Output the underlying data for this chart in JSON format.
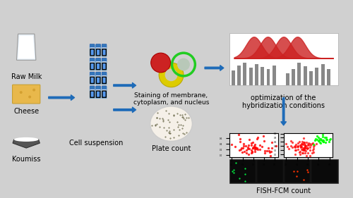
{
  "background_color": "#d8d8d8",
  "title": "",
  "labels": {
    "raw_milk": "Raw Milk",
    "cheese": "Cheese",
    "koumiss": "Koumiss",
    "cell_suspension": "Cell suspension",
    "staining": "Staining of membrane,\ncytoplasm, and nucleus",
    "optimization": "optimization of the\nhybridization conditions",
    "plate_count": "Plate count",
    "fish_fcm": "FISH-FCM count"
  },
  "arrow_color": "#1e6bb8",
  "arrow_down_color": "#1e6bb8",
  "font_size": 7,
  "fig_bg": "#d0d0d0"
}
